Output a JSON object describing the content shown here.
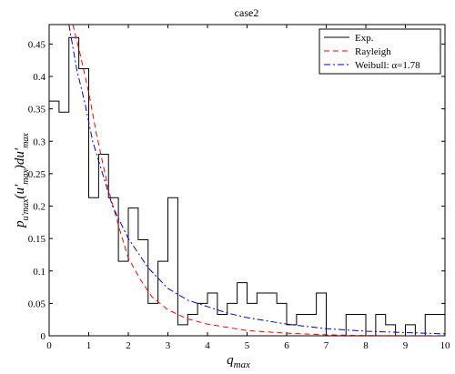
{
  "chart_data": {
    "type": "line",
    "title": "case2",
    "xlabel": "q",
    "xlabel_sub": "max",
    "ylabel_parts": {
      "p": "p",
      "sub": "u′max",
      "mid": "(u′",
      "mid_sub": "max",
      "end": ")du′",
      "end_sub": "max"
    },
    "xlim": [
      0,
      10
    ],
    "ylim": [
      0,
      0.48
    ],
    "x_ticks": [
      0,
      1,
      2,
      3,
      4,
      5,
      6,
      7,
      8,
      9,
      10
    ],
    "y_ticks": [
      0,
      0.05,
      0.1,
      0.15,
      0.2,
      0.25,
      0.3,
      0.35,
      0.4,
      0.45
    ],
    "y_tick_labels": [
      "0",
      "0.05",
      "0.1",
      "0.15",
      "0.2",
      "0.25",
      "0.3",
      "0.35",
      "0.4",
      "0.45"
    ],
    "grid": false,
    "legend_position": "top-right",
    "histogram": {
      "name": "Exp.",
      "color": "#000000",
      "bin_width": 0.25,
      "bin_start": 0,
      "values": [
        0.362,
        0.345,
        0.46,
        0.412,
        0.213,
        0.28,
        0.213,
        0.115,
        0.197,
        0.148,
        0.05,
        0.115,
        0.213,
        0.017,
        0.033,
        0.05,
        0.066,
        0.033,
        0.05,
        0.082,
        0.05,
        0.066,
        0.066,
        0.05,
        0.017,
        0.033,
        0.033,
        0.066,
        0.0,
        0.0,
        0.033,
        0.033,
        0.0,
        0.033,
        0.017,
        0.0,
        0.017,
        0.0,
        0.033,
        0.033,
        0.0,
        0.017
      ]
    },
    "series": [
      {
        "name": "Rayleigh",
        "color": "#ff0000",
        "dash": "6,4",
        "points": [
          [
            0.6,
            0.48
          ],
          [
            0.8,
            0.43
          ],
          [
            1.0,
            0.375
          ],
          [
            1.2,
            0.31
          ],
          [
            1.5,
            0.225
          ],
          [
            1.8,
            0.16
          ],
          [
            2.0,
            0.12
          ],
          [
            2.3,
            0.087
          ],
          [
            2.6,
            0.06
          ],
          [
            3.0,
            0.04
          ],
          [
            3.5,
            0.026
          ],
          [
            4.0,
            0.018
          ],
          [
            5.0,
            0.008
          ],
          [
            6.0,
            0.004
          ],
          [
            7.0,
            0.0015
          ],
          [
            8.0,
            0.0005
          ],
          [
            10.0,
            0.0
          ]
        ]
      },
      {
        "name": "Weibull: α=1.78",
        "color": "#0000cc",
        "dash": "7,3,2,3",
        "points": [
          [
            0.5,
            0.48
          ],
          [
            0.7,
            0.41
          ],
          [
            0.9,
            0.36
          ],
          [
            1.1,
            0.3
          ],
          [
            1.3,
            0.26
          ],
          [
            1.6,
            0.2
          ],
          [
            2.0,
            0.15
          ],
          [
            2.5,
            0.105
          ],
          [
            3.0,
            0.073
          ],
          [
            3.5,
            0.055
          ],
          [
            4.0,
            0.045
          ],
          [
            4.5,
            0.035
          ],
          [
            5.0,
            0.028
          ],
          [
            6.0,
            0.018
          ],
          [
            7.0,
            0.011
          ],
          [
            8.0,
            0.007
          ],
          [
            9.0,
            0.005
          ],
          [
            10.0,
            0.003
          ]
        ]
      }
    ],
    "legend": [
      {
        "label": "Exp.",
        "color": "#000000",
        "dash": ""
      },
      {
        "label": "Rayleigh",
        "color": "#ff0000",
        "dash": "6,4"
      },
      {
        "label": "Weibull: α=1.78",
        "color": "#0000cc",
        "dash": "7,3,2,3"
      }
    ]
  }
}
